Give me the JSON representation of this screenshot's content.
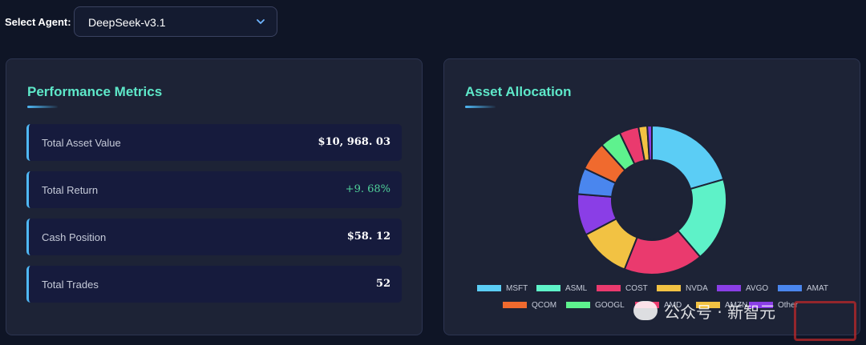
{
  "agent_selector": {
    "label": "Select Agent:",
    "selected": "DeepSeek-v3.1"
  },
  "metrics": {
    "title": "Performance Metrics",
    "rows": [
      {
        "label": "Total Asset Value",
        "value": "$10, 968. 03"
      },
      {
        "label": "Total Return",
        "value": "+9. 68%"
      },
      {
        "label": "Cash Position",
        "value": "$58. 12"
      },
      {
        "label": "Total Trades",
        "value": "52"
      }
    ]
  },
  "allocation": {
    "title": "Asset Allocation"
  },
  "chart_data": {
    "type": "pie",
    "title": "Asset Allocation",
    "donut": true,
    "legend_position": "bottom",
    "series": [
      {
        "name": "MSFT",
        "value": 20.5,
        "color": "#5bcdf5"
      },
      {
        "name": "ASML",
        "value": 18.3,
        "color": "#5ef2c8"
      },
      {
        "name": "COST",
        "value": 17.2,
        "color": "#ea3a6e"
      },
      {
        "name": "NVDA",
        "value": 11.3,
        "color": "#f2c243"
      },
      {
        "name": "AVGO",
        "value": 9.0,
        "color": "#8a3ee6"
      },
      {
        "name": "AMAT",
        "value": 5.7,
        "color": "#4a86ee"
      },
      {
        "name": "QCOM",
        "value": 6.3,
        "color": "#f06a2e"
      },
      {
        "name": "GOOGL",
        "value": 4.6,
        "color": "#5ef28e"
      },
      {
        "name": "AMD",
        "value": 4.2,
        "color": "#ea3a6e"
      },
      {
        "name": "AMZN",
        "value": 1.9,
        "color": "#f2c243"
      },
      {
        "name": "Other",
        "value": 1.0,
        "color": "#8a3ee6"
      }
    ]
  },
  "watermark": {
    "text": "公众号 · 新智元"
  }
}
